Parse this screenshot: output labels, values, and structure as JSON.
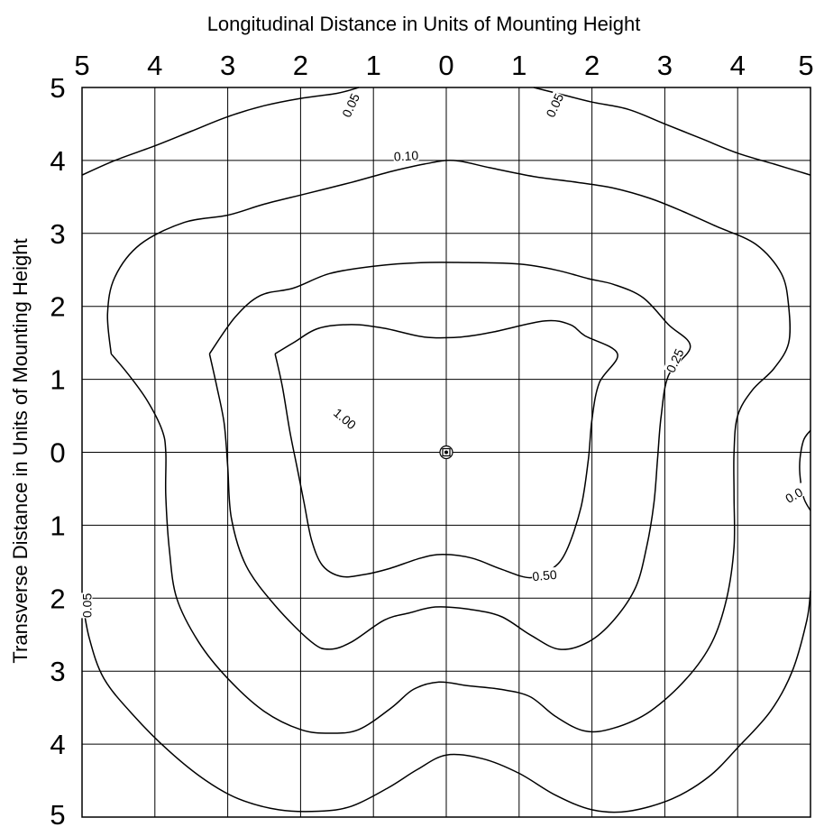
{
  "chart_data": {
    "type": "contour",
    "title": "",
    "xlabel": "Longitudinal Distance in Units of Mounting Height",
    "ylabel": "Transverse Distance in Units of Mounting Height",
    "x_tick_labels": [
      "5",
      "4",
      "3",
      "2",
      "1",
      "0",
      "1",
      "2",
      "3",
      "4",
      "5"
    ],
    "y_tick_labels": [
      "5",
      "4",
      "3",
      "2",
      "1",
      "0",
      "1",
      "2",
      "3",
      "4",
      "5"
    ],
    "xlim": [
      -5,
      5
    ],
    "ylim": [
      -5,
      5
    ],
    "grid": true,
    "luminaire": {
      "x": 0,
      "y": 0
    },
    "contours": [
      {
        "label": "1.00",
        "label_pos": [
          -1.4,
          0.45
        ],
        "label_rot": 40,
        "points": [
          [
            -2.35,
            1.35
          ],
          [
            -2.1,
            1.5
          ],
          [
            -1.75,
            1.7
          ],
          [
            -1.3,
            1.75
          ],
          [
            -0.85,
            1.7
          ],
          [
            -0.3,
            1.58
          ],
          [
            0.2,
            1.58
          ],
          [
            0.65,
            1.65
          ],
          [
            1.35,
            1.8
          ],
          [
            1.7,
            1.75
          ],
          [
            1.9,
            1.6
          ],
          [
            2.35,
            1.35
          ],
          [
            2.1,
            0.95
          ],
          [
            2.0,
            0.45
          ],
          [
            1.95,
            -0.1
          ],
          [
            1.85,
            -0.75
          ],
          [
            1.65,
            -1.35
          ],
          [
            1.45,
            -1.6
          ],
          [
            1.15,
            -1.72
          ],
          [
            0.75,
            -1.6
          ],
          [
            0.35,
            -1.45
          ],
          [
            -0.05,
            -1.4
          ],
          [
            -0.35,
            -1.45
          ],
          [
            -0.8,
            -1.6
          ],
          [
            -1.15,
            -1.68
          ],
          [
            -1.45,
            -1.7
          ],
          [
            -1.7,
            -1.55
          ],
          [
            -1.85,
            -1.2
          ],
          [
            -1.95,
            -0.7
          ],
          [
            -2.05,
            -0.2
          ],
          [
            -2.15,
            0.3
          ],
          [
            -2.25,
            0.9
          ],
          [
            -2.35,
            1.35
          ]
        ]
      },
      {
        "label": "0.50",
        "label_pos": [
          1.35,
          -1.7
        ],
        "label_rot": -5,
        "points": [
          [
            -3.25,
            1.35
          ],
          [
            -2.9,
            1.85
          ],
          [
            -2.55,
            2.15
          ],
          [
            -2.1,
            2.25
          ],
          [
            -1.6,
            2.45
          ],
          [
            -1.0,
            2.55
          ],
          [
            -0.35,
            2.6
          ],
          [
            0.35,
            2.6
          ],
          [
            1.0,
            2.58
          ],
          [
            1.5,
            2.5
          ],
          [
            1.95,
            2.38
          ],
          [
            2.3,
            2.3
          ],
          [
            2.7,
            2.12
          ],
          [
            3.05,
            1.75
          ],
          [
            3.35,
            1.45
          ],
          [
            3.05,
            1.05
          ],
          [
            2.95,
            0.5
          ],
          [
            2.9,
            -0.1
          ],
          [
            2.85,
            -0.7
          ],
          [
            2.75,
            -1.3
          ],
          [
            2.6,
            -1.85
          ],
          [
            2.3,
            -2.3
          ],
          [
            1.95,
            -2.6
          ],
          [
            1.55,
            -2.7
          ],
          [
            1.15,
            -2.5
          ],
          [
            0.75,
            -2.25
          ],
          [
            0.3,
            -2.15
          ],
          [
            -0.15,
            -2.12
          ],
          [
            -0.5,
            -2.2
          ],
          [
            -0.85,
            -2.3
          ],
          [
            -1.3,
            -2.6
          ],
          [
            -1.6,
            -2.7
          ],
          [
            -1.85,
            -2.6
          ],
          [
            -2.35,
            -2.1
          ],
          [
            -2.75,
            -1.55
          ],
          [
            -2.95,
            -0.9
          ],
          [
            -3.0,
            -0.2
          ],
          [
            -3.05,
            0.4
          ],
          [
            -3.15,
            0.9
          ],
          [
            -3.25,
            1.35
          ]
        ]
      },
      {
        "label": "0.25",
        "label_pos": [
          3.15,
          1.25
        ],
        "label_rot": -65,
        "points": [
          [
            -4.6,
            1.35
          ],
          [
            -4.65,
            1.9
          ],
          [
            -4.55,
            2.4
          ],
          [
            -4.2,
            2.85
          ],
          [
            -3.6,
            3.15
          ],
          [
            -3.0,
            3.25
          ],
          [
            -2.5,
            3.4
          ],
          [
            -1.9,
            3.55
          ],
          [
            -1.3,
            3.7
          ],
          [
            -0.75,
            3.85
          ],
          [
            -0.3,
            3.95
          ],
          [
            0.1,
            4.0
          ],
          [
            0.6,
            3.9
          ],
          [
            1.2,
            3.78
          ],
          [
            1.8,
            3.7
          ],
          [
            2.3,
            3.62
          ],
          [
            2.8,
            3.48
          ],
          [
            3.25,
            3.3
          ],
          [
            3.7,
            3.1
          ],
          [
            4.25,
            2.85
          ],
          [
            4.6,
            2.45
          ],
          [
            4.7,
            2.0
          ],
          [
            4.7,
            1.5
          ],
          [
            4.5,
            1.15
          ],
          [
            4.2,
            0.85
          ],
          [
            4.0,
            0.5
          ],
          [
            3.95,
            0.0
          ],
          [
            3.95,
            -0.6
          ],
          [
            3.95,
            -1.3
          ],
          [
            3.85,
            -2.0
          ],
          [
            3.65,
            -2.6
          ],
          [
            3.3,
            -3.1
          ],
          [
            2.8,
            -3.55
          ],
          [
            2.3,
            -3.78
          ],
          [
            1.9,
            -3.82
          ],
          [
            1.5,
            -3.62
          ],
          [
            1.15,
            -3.35
          ],
          [
            0.75,
            -3.25
          ],
          [
            0.3,
            -3.2
          ],
          [
            -0.1,
            -3.15
          ],
          [
            -0.45,
            -3.25
          ],
          [
            -0.75,
            -3.5
          ],
          [
            -1.2,
            -3.8
          ],
          [
            -1.6,
            -3.85
          ],
          [
            -2.0,
            -3.8
          ],
          [
            -2.5,
            -3.55
          ],
          [
            -3.0,
            -3.1
          ],
          [
            -3.4,
            -2.6
          ],
          [
            -3.7,
            -2.0
          ],
          [
            -3.8,
            -1.35
          ],
          [
            -3.85,
            -0.6
          ],
          [
            -3.85,
            0.0
          ],
          [
            -3.9,
            0.3
          ],
          [
            -4.1,
            0.7
          ],
          [
            -4.35,
            1.05
          ],
          [
            -4.6,
            1.35
          ]
        ]
      },
      {
        "label": "0.10",
        "label_pos": [
          -0.55,
          4.05
        ],
        "label_rot": -3,
        "points": [
          [
            -5.0,
            3.8
          ],
          [
            -4.55,
            4.0
          ],
          [
            -4.0,
            4.2
          ],
          [
            -3.5,
            4.4
          ],
          [
            -3.0,
            4.6
          ],
          [
            -2.5,
            4.75
          ],
          [
            -2.0,
            4.85
          ],
          [
            -1.5,
            4.92
          ],
          [
            -1.2,
            5.0
          ]
        ]
      },
      {
        "label": "",
        "label_pos": [
          0,
          0
        ],
        "label_rot": 0,
        "points": [
          [
            1.2,
            5.0
          ],
          [
            1.6,
            4.9
          ],
          [
            2.0,
            4.8
          ],
          [
            2.5,
            4.7
          ],
          [
            3.0,
            4.5
          ],
          [
            3.5,
            4.3
          ],
          [
            4.0,
            4.1
          ],
          [
            4.5,
            3.95
          ],
          [
            5.0,
            3.8
          ]
        ]
      },
      {
        "label": "0.05",
        "label_pos": [
          -1.3,
          4.75
        ],
        "label_rot": -65,
        "points": [
          [
            -5.0,
            -2.0
          ],
          [
            -4.9,
            -2.55
          ],
          [
            -4.7,
            -3.1
          ],
          [
            -4.3,
            -3.6
          ],
          [
            -3.8,
            -4.1
          ],
          [
            -3.3,
            -4.5
          ],
          [
            -2.85,
            -4.75
          ],
          [
            -2.3,
            -4.9
          ],
          [
            -1.75,
            -4.92
          ],
          [
            -1.3,
            -4.85
          ],
          [
            -0.8,
            -4.6
          ],
          [
            -0.4,
            -4.35
          ],
          [
            0.0,
            -4.15
          ],
          [
            0.5,
            -4.2
          ],
          [
            1.0,
            -4.4
          ],
          [
            1.5,
            -4.7
          ],
          [
            2.0,
            -4.9
          ],
          [
            2.5,
            -4.92
          ],
          [
            3.1,
            -4.75
          ],
          [
            3.6,
            -4.45
          ],
          [
            4.0,
            -4.05
          ],
          [
            4.45,
            -3.55
          ],
          [
            4.75,
            -3.0
          ],
          [
            4.95,
            -2.3
          ],
          [
            5.0,
            -1.9
          ]
        ]
      },
      {
        "label": "",
        "label_pos": [
          0,
          0
        ],
        "label_rot": 0,
        "points": [
          [
            5.0,
            0.3
          ],
          [
            4.9,
            0.15
          ],
          [
            4.85,
            -0.2
          ],
          [
            4.9,
            -0.6
          ],
          [
            5.0,
            -0.8
          ]
        ]
      }
    ],
    "extra_labels": [
      {
        "text": "0.05",
        "pos": [
          1.5,
          4.75
        ],
        "rot": -65
      },
      {
        "text": "0.05",
        "pos": [
          -4.92,
          -2.1
        ],
        "rot": -90
      },
      {
        "text": "0.0",
        "pos": [
          4.78,
          -0.6
        ],
        "rot": -30
      }
    ]
  }
}
